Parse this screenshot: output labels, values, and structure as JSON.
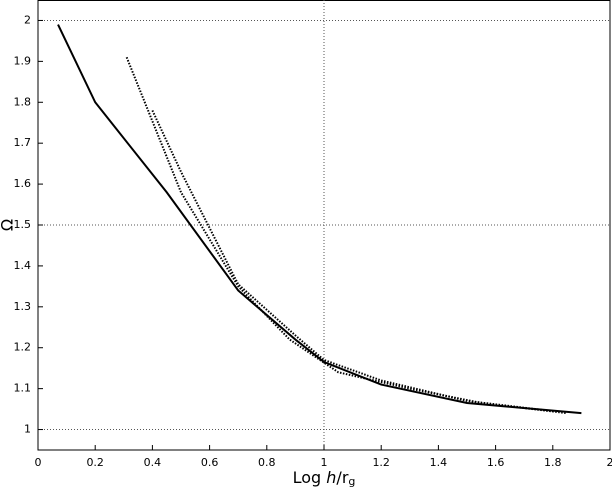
{
  "chart_data": {
    "type": "line",
    "xlabel": [
      "Log ",
      "h",
      "/r",
      "g"
    ],
    "ylabel": "Ω",
    "xlim": [
      0,
      2
    ],
    "ylim": [
      0.95,
      2.05
    ],
    "xticks": [
      0,
      0.2,
      0.4,
      0.6,
      0.8,
      1,
      1.2,
      1.4,
      1.6,
      1.8,
      2
    ],
    "yticks": [
      1,
      1.1,
      1.2,
      1.3,
      1.4,
      1.5,
      1.6,
      1.7,
      1.8,
      1.9,
      2
    ],
    "grid_x": [
      1
    ],
    "grid_y": [
      1,
      1.5,
      2
    ],
    "series": [
      {
        "color": "#000000",
        "dash": "solid",
        "x": [
          0.07,
          0.2,
          0.45,
          0.7,
          0.9,
          1.0,
          1.2,
          1.5,
          1.9
        ],
        "values": [
          1.99,
          1.8,
          1.58,
          1.34,
          1.22,
          1.165,
          1.11,
          1.065,
          1.04
        ]
      },
      {
        "color": "#000000",
        "dash": "dotted",
        "x": [
          0.31,
          0.5,
          0.7,
          0.88,
          1.05,
          1.3,
          1.55,
          1.85
        ],
        "values": [
          1.91,
          1.58,
          1.35,
          1.22,
          1.14,
          1.1,
          1.065,
          1.04
        ]
      },
      {
        "color": "#000000",
        "dash": "dotted",
        "x": [
          0.4,
          0.5,
          0.7,
          0.9,
          1.0,
          1.2,
          1.5,
          1.8
        ],
        "values": [
          1.78,
          1.63,
          1.355,
          1.23,
          1.17,
          1.12,
          1.07,
          1.045
        ]
      }
    ]
  }
}
